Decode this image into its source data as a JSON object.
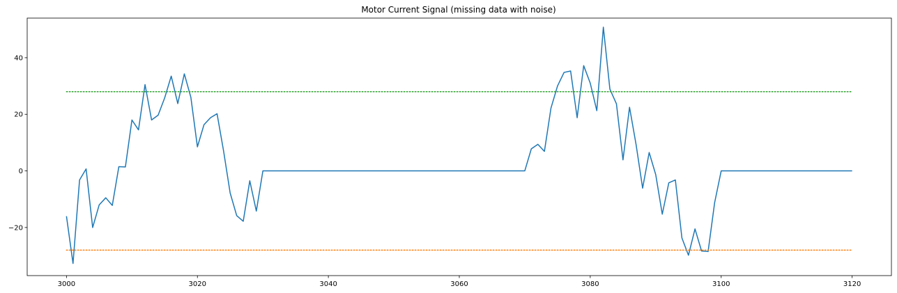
{
  "chart_data": {
    "type": "line",
    "title": "Motor Current Signal (missing data with noise)",
    "xlabel": "",
    "ylabel": "",
    "xlim": [
      2994,
      3126
    ],
    "ylim": [
      -37,
      54
    ],
    "grid": false,
    "legend": "none",
    "xticks": [
      3000,
      3020,
      3040,
      3060,
      3080,
      3100,
      3120
    ],
    "yticks": [
      -20,
      0,
      20,
      40
    ],
    "series": [
      {
        "color": "#1f77b4",
        "style": "solid",
        "x": [
          3000,
          3001,
          3002,
          3003,
          3004,
          3005,
          3006,
          3007,
          3008,
          3009,
          3010,
          3011,
          3012,
          3013,
          3014,
          3015,
          3016,
          3017,
          3018,
          3019,
          3020,
          3021,
          3022,
          3023,
          3024,
          3025,
          3026,
          3027,
          3028,
          3029,
          3030,
          3031,
          3032,
          3033,
          3034,
          3035,
          3036,
          3037,
          3038,
          3039,
          3040,
          3041,
          3042,
          3043,
          3044,
          3045,
          3046,
          3047,
          3048,
          3049,
          3050,
          3051,
          3052,
          3053,
          3054,
          3055,
          3056,
          3057,
          3058,
          3059,
          3060,
          3061,
          3062,
          3063,
          3064,
          3065,
          3066,
          3067,
          3068,
          3069,
          3070,
          3071,
          3072,
          3073,
          3074,
          3075,
          3076,
          3077,
          3078,
          3079,
          3080,
          3081,
          3082,
          3083,
          3084,
          3085,
          3086,
          3087,
          3088,
          3089,
          3090,
          3091,
          3092,
          3093,
          3094,
          3095,
          3096,
          3097,
          3098,
          3099,
          3100,
          3101,
          3102,
          3103,
          3104,
          3105,
          3106,
          3107,
          3108,
          3109,
          3110,
          3111,
          3112,
          3113,
          3114,
          3115,
          3116,
          3117,
          3118,
          3119,
          3120
        ],
        "y": [
          -16,
          -32.7,
          -3.2,
          0.7,
          -20,
          -12,
          -9.5,
          -12.2,
          1.5,
          1.4,
          18,
          14.5,
          30.5,
          18,
          19.7,
          25.8,
          33.5,
          23.8,
          34.3,
          26,
          8.5,
          16.3,
          18.8,
          20.2,
          7,
          -7.8,
          -15.8,
          -17.8,
          -3.5,
          -14.2,
          0,
          0,
          0,
          0,
          0,
          0,
          0,
          0,
          0,
          0,
          0,
          0,
          0,
          0,
          0,
          0,
          0,
          0,
          0,
          0,
          0,
          0,
          0,
          0,
          0,
          0,
          0,
          0,
          0,
          0,
          0,
          0,
          0,
          0,
          0,
          0,
          0,
          0,
          0,
          0,
          0,
          7.8,
          9.4,
          6.9,
          22.2,
          30,
          34.8,
          35.3,
          18.8,
          37.2,
          31,
          21.3,
          50.8,
          28.9,
          23.7,
          3.9,
          22.5,
          9.3,
          -6.1,
          6.5,
          -1.3,
          -15.3,
          -4.2,
          -3.2,
          -23.7,
          -29.8,
          -20.5,
          -28.3,
          -28.5,
          -11.2,
          0,
          0,
          0,
          0,
          0,
          0,
          0,
          0,
          0,
          0,
          0,
          0,
          0,
          0,
          0,
          0,
          0,
          0,
          0,
          0,
          0
        ]
      },
      {
        "color": "#ff7f0e",
        "style": "dotted",
        "x": [
          3000,
          3120
        ],
        "y": [
          -28,
          -28
        ]
      },
      {
        "color": "#2ca02c",
        "style": "dotted",
        "x": [
          3000,
          3120
        ],
        "y": [
          28,
          28
        ]
      }
    ]
  }
}
